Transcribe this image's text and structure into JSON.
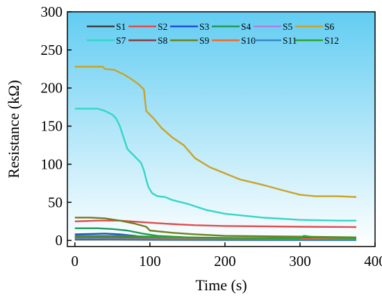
{
  "chart_data": {
    "type": "line",
    "xlabel": "Time (s)",
    "ylabel": "Resistance (kΩ)",
    "xlim": [
      -10,
      400
    ],
    "ylim": [
      -8,
      300
    ],
    "xticks": [
      0,
      100,
      200,
      300,
      400
    ],
    "yticks": [
      0,
      50,
      100,
      150,
      200,
      250,
      300
    ],
    "background_gradient": [
      "#62cdf2",
      "#ffffff"
    ],
    "legend_placement": "top",
    "series": [
      {
        "name": "S1",
        "color": "#404040",
        "points": [
          [
            0,
            1
          ],
          [
            50,
            1
          ],
          [
            100,
            0.8
          ],
          [
            200,
            0.6
          ],
          [
            300,
            0.5
          ],
          [
            375,
            0.5
          ]
        ]
      },
      {
        "name": "S2",
        "color": "#e04b4b",
        "points": [
          [
            0,
            25
          ],
          [
            30,
            26
          ],
          [
            60,
            26
          ],
          [
            90,
            24
          ],
          [
            120,
            22
          ],
          [
            160,
            20
          ],
          [
            200,
            19
          ],
          [
            250,
            18.5
          ],
          [
            300,
            18
          ],
          [
            375,
            17.5
          ]
        ]
      },
      {
        "name": "S3",
        "color": "#1f4fd6",
        "points": [
          [
            0,
            8
          ],
          [
            20,
            8.5
          ],
          [
            40,
            9
          ],
          [
            60,
            8
          ],
          [
            80,
            6
          ],
          [
            100,
            3
          ],
          [
            130,
            2
          ],
          [
            200,
            1.5
          ],
          [
            300,
            1
          ],
          [
            375,
            1
          ]
        ]
      },
      {
        "name": "S4",
        "color": "#1f9a5a",
        "points": [
          [
            0,
            16
          ],
          [
            30,
            16
          ],
          [
            50,
            15
          ],
          [
            70,
            13
          ],
          [
            90,
            9
          ],
          [
            110,
            6
          ],
          [
            150,
            4
          ],
          [
            200,
            3
          ],
          [
            300,
            2.5
          ],
          [
            375,
            2.5
          ]
        ]
      },
      {
        "name": "S5",
        "color": "#b27fe0",
        "points": [
          [
            0,
            5
          ],
          [
            40,
            5
          ],
          [
            70,
            4.5
          ],
          [
            100,
            4
          ],
          [
            200,
            3
          ],
          [
            375,
            3
          ]
        ]
      },
      {
        "name": "S6",
        "color": "#c9a227",
        "points": [
          [
            0,
            228
          ],
          [
            20,
            228
          ],
          [
            37,
            228
          ],
          [
            40,
            225
          ],
          [
            52,
            224
          ],
          [
            65,
            218
          ],
          [
            75,
            212
          ],
          [
            85,
            205
          ],
          [
            92,
            198
          ],
          [
            95,
            170
          ],
          [
            105,
            160
          ],
          [
            115,
            148
          ],
          [
            130,
            135
          ],
          [
            145,
            125
          ],
          [
            160,
            108
          ],
          [
            180,
            96
          ],
          [
            200,
            88
          ],
          [
            220,
            80
          ],
          [
            250,
            73
          ],
          [
            280,
            65
          ],
          [
            300,
            60
          ],
          [
            320,
            58
          ],
          [
            350,
            58
          ],
          [
            375,
            57
          ]
        ]
      },
      {
        "name": "S7",
        "color": "#33d6c8",
        "points": [
          [
            0,
            173
          ],
          [
            30,
            173
          ],
          [
            40,
            170
          ],
          [
            50,
            165
          ],
          [
            55,
            160
          ],
          [
            60,
            150
          ],
          [
            65,
            135
          ],
          [
            70,
            120
          ],
          [
            80,
            110
          ],
          [
            88,
            102
          ],
          [
            92,
            92
          ],
          [
            95,
            80
          ],
          [
            98,
            70
          ],
          [
            103,
            62
          ],
          [
            110,
            58
          ],
          [
            120,
            57
          ],
          [
            130,
            53
          ],
          [
            150,
            48
          ],
          [
            175,
            40
          ],
          [
            200,
            35
          ],
          [
            250,
            30
          ],
          [
            300,
            27
          ],
          [
            350,
            26
          ],
          [
            375,
            26
          ]
        ]
      },
      {
        "name": "S8",
        "color": "#8b3a3a",
        "points": [
          [
            0,
            4
          ],
          [
            50,
            4
          ],
          [
            100,
            3.5
          ],
          [
            200,
            3
          ],
          [
            375,
            3
          ]
        ]
      },
      {
        "name": "S9",
        "color": "#6e7f1f",
        "points": [
          [
            0,
            30
          ],
          [
            20,
            30
          ],
          [
            40,
            29
          ],
          [
            60,
            26
          ],
          [
            80,
            22
          ],
          [
            95,
            18
          ],
          [
            100,
            13
          ],
          [
            130,
            10
          ],
          [
            160,
            8
          ],
          [
            200,
            6
          ],
          [
            300,
            5
          ],
          [
            375,
            4
          ]
        ]
      },
      {
        "name": "S10",
        "color": "#f06a2a",
        "points": [
          [
            0,
            3
          ],
          [
            100,
            2.5
          ],
          [
            200,
            2
          ],
          [
            375,
            2
          ]
        ]
      },
      {
        "name": "S11",
        "color": "#3a86c8",
        "points": [
          [
            0,
            2
          ],
          [
            100,
            1.5
          ],
          [
            200,
            1
          ],
          [
            375,
            0.5
          ]
        ]
      },
      {
        "name": "S12",
        "color": "#2aa52a",
        "points": [
          [
            0,
            6
          ],
          [
            60,
            6
          ],
          [
            100,
            5
          ],
          [
            150,
            4
          ],
          [
            200,
            3.5
          ],
          [
            300,
            3
          ],
          [
            305,
            6
          ],
          [
            320,
            4
          ],
          [
            375,
            3
          ]
        ]
      }
    ]
  }
}
